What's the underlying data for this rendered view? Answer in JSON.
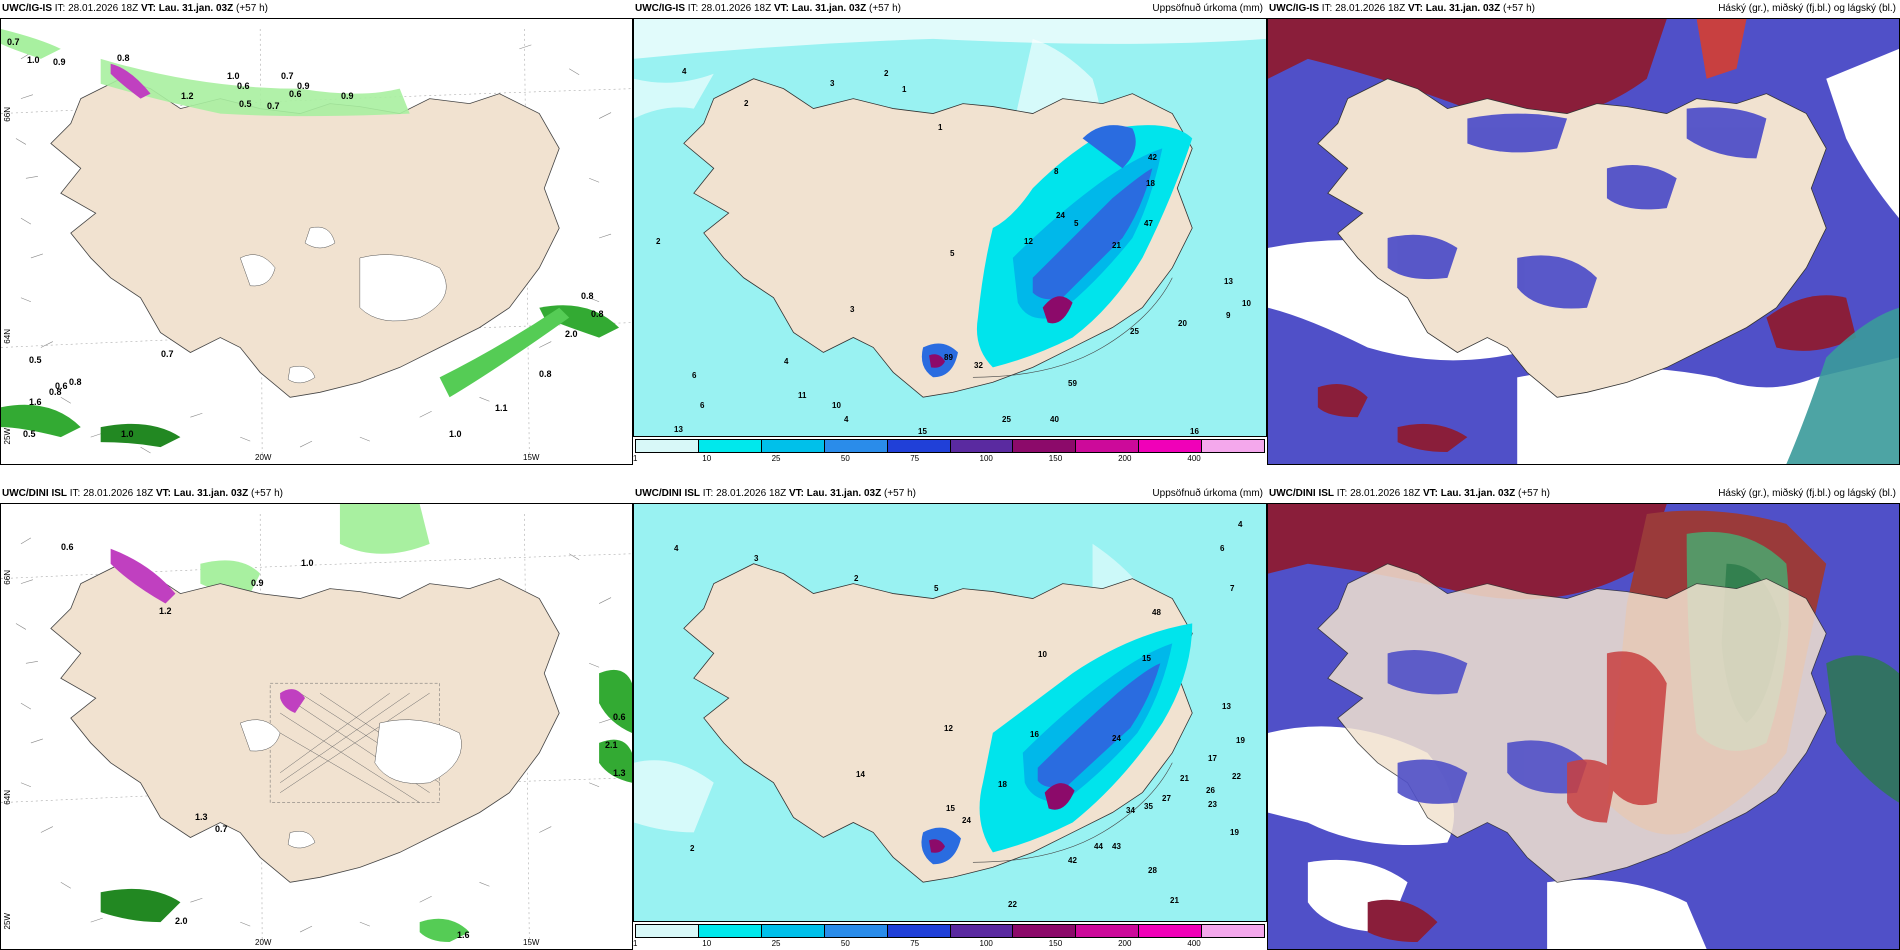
{
  "panels": {
    "p1": {
      "model": "UWC/IG-IS",
      "it_label": "IT:",
      "it": "28.01.2026 18Z",
      "vt_label": "VT:",
      "vt": "Lau. 31.jan. 03Z",
      "lead": "(+57 h)",
      "right": ""
    },
    "p2": {
      "model": "UWC/IG-IS",
      "it_label": "IT:",
      "it": "28.01.2026 18Z",
      "vt_label": "VT:",
      "vt": "Lau. 31.jan. 03Z",
      "lead": "(+57 h)",
      "right": "Uppsöfnuð úrkoma (mm)"
    },
    "p3": {
      "model": "UWC/IG-IS",
      "it_label": "IT:",
      "it": "28.01.2026 18Z",
      "vt_label": "VT:",
      "vt": "Lau. 31.jan. 03Z",
      "lead": "(+57 h)",
      "right": "Háský (gr.), miðský (fj.bl.) og lágský (bl.)"
    },
    "p4": {
      "model": "UWC/DINI ISL",
      "it_label": "IT:",
      "it": "28.01.2026 18Z",
      "vt_label": "VT:",
      "vt": "Lau. 31.jan. 03Z",
      "lead": "(+57 h)",
      "right": ""
    },
    "p5": {
      "model": "UWC/DINI ISL",
      "it_label": "IT:",
      "it": "28.01.2026 18Z",
      "vt_label": "VT:",
      "vt": "Lau. 31.jan. 03Z",
      "lead": "(+57 h)",
      "right": "Uppsöfnuð úrkoma (mm)"
    },
    "p6": {
      "model": "UWC/DINI ISL",
      "it_label": "IT:",
      "it": "28.01.2026 18Z",
      "vt_label": "VT:",
      "vt": "Lau. 31.jan. 03Z",
      "lead": "(+57 h)",
      "right": "Háský (gr.), miðský (fj.bl.) og lágský (bl.)"
    }
  },
  "coords": {
    "lon_20": "20W",
    "lon_15": "15W",
    "lon_25": "25W",
    "lat_66": "66N",
    "lat_64": "64N"
  },
  "legend": {
    "ticks": [
      "1",
      "10",
      "25",
      "50",
      "75",
      "100",
      "150",
      "200",
      "400"
    ],
    "colors": [
      "#d8f8f8",
      "#00e8ec",
      "#00c0ea",
      "#2a8cea",
      "#2040d8",
      "#5a2aa0",
      "#8c0a6a",
      "#cc0a9a",
      "#f000b8",
      "#f4a8ec"
    ]
  },
  "colors": {
    "land": "#f1e2d0",
    "precip_light": "#99f2f2",
    "precip_mid": "#00e4ec",
    "high_cloud": "#8a1e3a",
    "mid_cloud": "#5050c8",
    "green": "#66e060",
    "purple": "#c040c0"
  },
  "values": {
    "p1": [
      "0.7",
      "1.0",
      "0.9",
      "1.0",
      "0.6",
      "0.7",
      "0.9",
      "0.5",
      "0.7",
      "0.6",
      "1.2",
      "0.8",
      "0.7",
      "0.5",
      "0.6",
      "0.8",
      "1.6",
      "0.5",
      "1.0",
      "1.1",
      "0.8",
      "0.8",
      "2.0",
      "0.8",
      "1.0",
      "0.8",
      "0.9"
    ],
    "p2": [
      "4",
      "2",
      "3",
      "2",
      "1",
      "5",
      "12",
      "8",
      "42",
      "47",
      "18",
      "21",
      "25",
      "13",
      "10",
      "9",
      "24",
      "5",
      "40",
      "59",
      "32",
      "89",
      "11",
      "10",
      "6",
      "4",
      "13",
      "15",
      "25",
      "16",
      "20",
      "3",
      "4",
      "6",
      "2",
      "1"
    ],
    "p4": [
      "0.6",
      "0.9",
      "1.2",
      "1.0",
      "0.7",
      "1.3",
      "0.6",
      "1.3",
      "2.1",
      "1.6",
      "2.0"
    ],
    "p5": [
      "4",
      "3",
      "2",
      "5",
      "10",
      "18",
      "16",
      "48",
      "15",
      "24",
      "12",
      "14",
      "21",
      "17",
      "19",
      "22",
      "26",
      "23",
      "35",
      "34",
      "44",
      "43",
      "42",
      "28",
      "27",
      "22",
      "21",
      "19",
      "13",
      "7",
      "6",
      "4",
      "2",
      "15",
      "24"
    ]
  }
}
